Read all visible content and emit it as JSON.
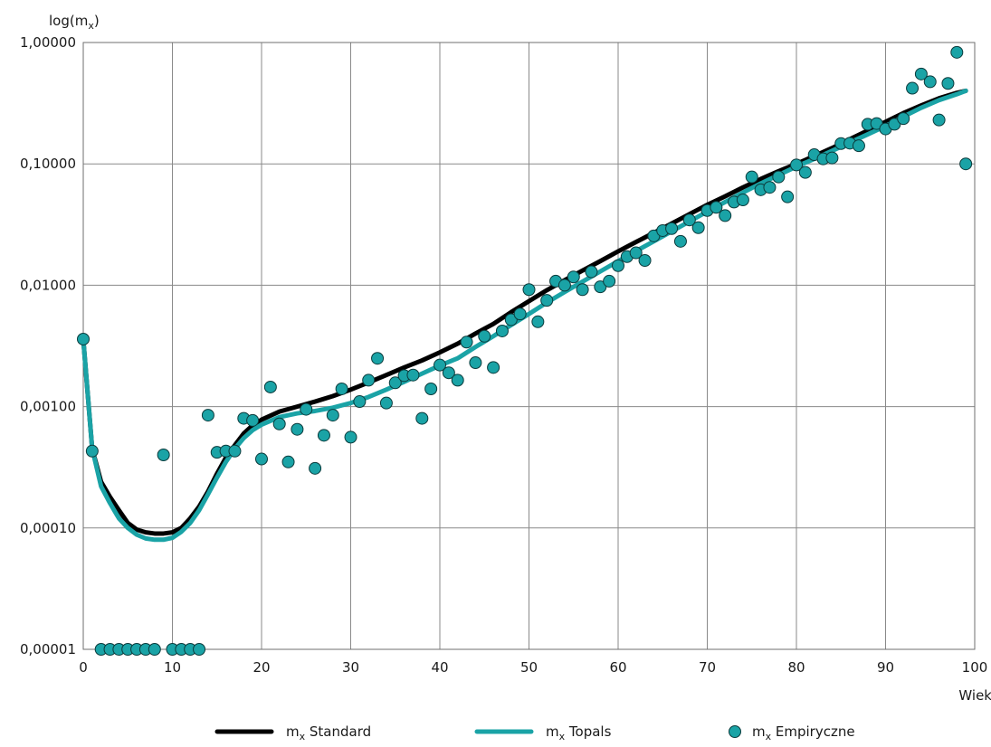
{
  "chart_data": {
    "type": "line",
    "ylabel": "log(m",
    "ylabel_sub": "x",
    "ylabel_close": ")",
    "xlabel": "Wiek",
    "xlim": [
      0,
      100
    ],
    "ylim": [
      1e-05,
      1
    ],
    "yscale": "log",
    "grid": true,
    "legend_position": "bottom",
    "x_ticks": [
      0,
      10,
      20,
      30,
      40,
      50,
      60,
      70,
      80,
      90,
      100
    ],
    "x_tick_labels": [
      "0",
      "10",
      "20",
      "30",
      "40",
      "50",
      "60",
      "70",
      "80",
      "90",
      "100"
    ],
    "y_ticks": [
      1e-05,
      0.0001,
      0.001,
      0.01,
      0.1,
      1
    ],
    "y_tick_labels": [
      "0,00001",
      "0,00010",
      "0,00100",
      "0,01000",
      "0,10000",
      "1,00000"
    ],
    "series": [
      {
        "name_prefix": "m",
        "name_sub": "x",
        "name_suffix": " Standard",
        "kind": "line",
        "color": "#000000",
        "x": [
          0,
          1,
          2,
          3,
          4,
          5,
          6,
          7,
          8,
          9,
          10,
          11,
          12,
          13,
          14,
          15,
          16,
          17,
          18,
          19,
          20,
          22,
          24,
          26,
          28,
          30,
          32,
          34,
          36,
          38,
          40,
          42,
          44,
          46,
          48,
          50,
          52,
          54,
          56,
          58,
          60,
          62,
          64,
          66,
          68,
          70,
          72,
          74,
          76,
          78,
          80,
          82,
          84,
          86,
          88,
          90,
          92,
          94,
          96,
          98,
          99
        ],
        "y": [
          0.0036,
          0.00045,
          0.00024,
          0.00018,
          0.00014,
          0.00011,
          9.7e-05,
          9.2e-05,
          9e-05,
          9e-05,
          9.2e-05,
          0.0001,
          0.00012,
          0.00015,
          0.0002,
          0.00028,
          0.00038,
          0.00048,
          0.0006,
          0.0007,
          0.00078,
          0.00091,
          0.001,
          0.0011,
          0.00122,
          0.00138,
          0.00158,
          0.00182,
          0.0021,
          0.0024,
          0.0028,
          0.0033,
          0.004,
          0.0048,
          0.006,
          0.0074,
          0.0091,
          0.011,
          0.0132,
          0.0158,
          0.019,
          0.0227,
          0.027,
          0.0322,
          0.0385,
          0.046,
          0.054,
          0.064,
          0.075,
          0.087,
          0.1,
          0.116,
          0.135,
          0.16,
          0.188,
          0.222,
          0.262,
          0.303,
          0.347,
          0.385,
          0.4
        ]
      },
      {
        "name_prefix": "m",
        "name_sub": "x",
        "name_suffix": " Topals",
        "kind": "line",
        "color": "#1aa3a6",
        "x": [
          0,
          1,
          2,
          3,
          4,
          5,
          6,
          7,
          8,
          9,
          10,
          11,
          12,
          13,
          14,
          15,
          16,
          17,
          18,
          19,
          20,
          22,
          24,
          26,
          28,
          30,
          32,
          34,
          36,
          38,
          40,
          42,
          44,
          46,
          48,
          50,
          52,
          54,
          56,
          58,
          60,
          62,
          64,
          66,
          68,
          70,
          72,
          74,
          76,
          78,
          80,
          82,
          84,
          86,
          88,
          90,
          92,
          94,
          96,
          98,
          99
        ],
        "y": [
          0.0036,
          0.00045,
          0.00022,
          0.00016,
          0.00012,
          0.0001,
          8.8e-05,
          8.2e-05,
          8e-05,
          8e-05,
          8.3e-05,
          9.3e-05,
          0.00011,
          0.00014,
          0.00019,
          0.00026,
          0.00035,
          0.00045,
          0.00055,
          0.00064,
          0.00071,
          0.00082,
          0.00088,
          0.00092,
          0.00098,
          0.00107,
          0.0012,
          0.00138,
          0.0016,
          0.00187,
          0.00218,
          0.0025,
          0.0031,
          0.0038,
          0.0047,
          0.0058,
          0.0072,
          0.0088,
          0.0107,
          0.013,
          0.0158,
          0.0191,
          0.023,
          0.0278,
          0.0335,
          0.0405,
          0.0485,
          0.058,
          0.069,
          0.081,
          0.095,
          0.11,
          0.128,
          0.15,
          0.175,
          0.205,
          0.245,
          0.29,
          0.335,
          0.375,
          0.4
        ]
      },
      {
        "name_prefix": "m",
        "name_sub": "x",
        "name_suffix": " Empiryczne",
        "kind": "scatter",
        "color": "#1aa3a6",
        "x": [
          0,
          1,
          2,
          3,
          4,
          5,
          6,
          7,
          8,
          9,
          10,
          11,
          12,
          13,
          14,
          15,
          16,
          17,
          18,
          19,
          20,
          21,
          22,
          23,
          24,
          25,
          26,
          27,
          28,
          29,
          30,
          31,
          32,
          33,
          34,
          35,
          36,
          37,
          38,
          39,
          40,
          41,
          42,
          43,
          44,
          45,
          46,
          47,
          48,
          49,
          50,
          51,
          52,
          53,
          54,
          55,
          56,
          57,
          58,
          59,
          60,
          61,
          62,
          63,
          64,
          65,
          66,
          67,
          68,
          69,
          70,
          71,
          72,
          73,
          74,
          75,
          76,
          77,
          78,
          79,
          80,
          81,
          82,
          83,
          84,
          85,
          86,
          87,
          88,
          89,
          90,
          91,
          92,
          93,
          94,
          95,
          96,
          97,
          98,
          99
        ],
        "y": [
          0.0036,
          0.00043,
          1e-05,
          1e-05,
          1e-05,
          1e-05,
          1e-05,
          1e-05,
          1e-05,
          0.0004,
          1e-05,
          1e-05,
          1e-05,
          1e-05,
          0.00085,
          0.00042,
          0.00043,
          0.00043,
          0.0008,
          0.00077,
          0.00037,
          0.00145,
          0.00072,
          0.00035,
          0.00065,
          0.00095,
          0.00031,
          0.00058,
          0.00085,
          0.0014,
          0.00056,
          0.0011,
          0.00165,
          0.0025,
          0.00107,
          0.00157,
          0.0018,
          0.00182,
          0.0008,
          0.0014,
          0.0022,
          0.0019,
          0.00165,
          0.0034,
          0.0023,
          0.0038,
          0.0021,
          0.0042,
          0.0052,
          0.0058,
          0.0092,
          0.005,
          0.0075,
          0.0108,
          0.01,
          0.0117,
          0.0092,
          0.0129,
          0.0097,
          0.0108,
          0.0145,
          0.0172,
          0.0185,
          0.016,
          0.0255,
          0.0282,
          0.0293,
          0.023,
          0.0345,
          0.0298,
          0.0413,
          0.0438,
          0.0375,
          0.0485,
          0.0505,
          0.078,
          0.0612,
          0.064,
          0.078,
          0.0535,
          0.098,
          0.085,
          0.119,
          0.11,
          0.112,
          0.147,
          0.148,
          0.141,
          0.212,
          0.215,
          0.194,
          0.212,
          0.236,
          0.42,
          0.55,
          0.475,
          0.23,
          0.46,
          0.83,
          0.1
        ]
      }
    ]
  }
}
